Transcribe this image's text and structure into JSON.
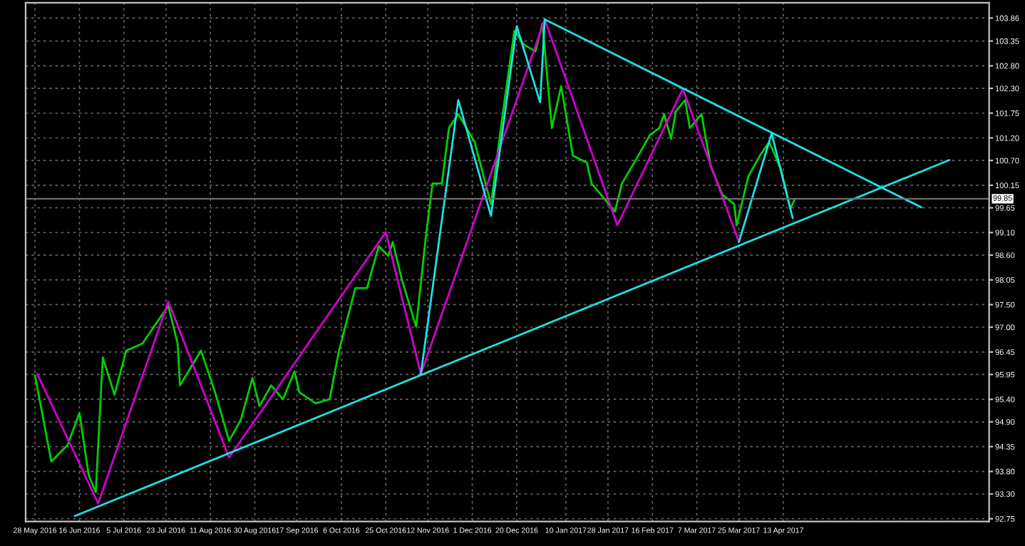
{
  "chart_data": {
    "type": "line",
    "xlim": [
      "2016-05-24",
      "2017-07-10"
    ],
    "ylim": [
      92.69,
      104.2
    ],
    "xticks": [
      {
        "value": "2016-05-28",
        "label": "28 May 2016"
      },
      {
        "value": "2016-06-16",
        "label": "16 Jun 2016"
      },
      {
        "value": "2016-07-05",
        "label": "5 Jul 2016"
      },
      {
        "value": "2016-07-23",
        "label": "23 Jul 2016"
      },
      {
        "value": "2016-08-11",
        "label": "11 Aug 2016"
      },
      {
        "value": "2016-08-30",
        "label": "30 Aug 2016"
      },
      {
        "value": "2016-09-17",
        "label": "17 Sep 2016"
      },
      {
        "value": "2016-10-06",
        "label": "6 Oct 2016"
      },
      {
        "value": "2016-10-25",
        "label": "25 Oct 2016"
      },
      {
        "value": "2016-11-12",
        "label": "12 Nov 2016"
      },
      {
        "value": "2016-12-01",
        "label": "1 Dec 2016"
      },
      {
        "value": "2016-12-20",
        "label": "20 Dec 2016"
      },
      {
        "value": "2017-01-10",
        "label": "10 Jan 2017"
      },
      {
        "value": "2017-01-28",
        "label": "28 Jan 2017"
      },
      {
        "value": "2017-02-16",
        "label": "16 Feb 2017"
      },
      {
        "value": "2017-03-07",
        "label": "7 Mar 2017"
      },
      {
        "value": "2017-03-25",
        "label": "25 Mar 2017"
      },
      {
        "value": "2017-04-13",
        "label": "13 Apr 2017"
      }
    ],
    "yticks": [
      103.86,
      103.35,
      {
        "value": 102.8,
        "label": "102.80"
      },
      {
        "value": 102.3,
        "label": "102.30"
      },
      101.75,
      {
        "value": 101.2,
        "label": "101.20"
      },
      {
        "value": 100.7,
        "label": "100.70"
      },
      100.15,
      99.65,
      {
        "value": 99.1,
        "label": "99.10"
      },
      {
        "value": 98.6,
        "label": "98.60"
      },
      98.05,
      {
        "value": 97.5,
        "label": "97.50"
      },
      {
        "value": 97.0,
        "label": "97.00"
      },
      96.45,
      95.95,
      {
        "value": 95.4,
        "label": "95.40"
      },
      {
        "value": 94.9,
        "label": "94.90"
      },
      94.35,
      {
        "value": 93.8,
        "label": "93.80"
      },
      {
        "value": 93.3,
        "label": "93.30"
      },
      92.75
    ],
    "grid": true,
    "line_style": "solid",
    "ref_lines": [
      {
        "axis": "y",
        "value": 99.85,
        "label": "99.85",
        "color": "#6e6e6e"
      }
    ],
    "series": [
      {
        "color": "#00d000",
        "x": [
          "2016-05-28",
          "2016-06-04",
          "2016-06-11",
          "2016-06-16",
          "2016-06-20",
          "2016-06-23",
          "2016-06-26",
          "2016-07-01",
          "2016-07-06",
          "2016-07-13",
          "2016-07-19",
          "2016-07-24",
          "2016-07-28",
          "2016-07-29",
          "2016-08-07",
          "2016-08-13",
          "2016-08-19",
          "2016-08-24",
          "2016-08-29",
          "2016-09-01",
          "2016-09-06",
          "2016-09-11",
          "2016-09-16",
          "2016-09-18",
          "2016-09-25",
          "2016-10-01",
          "2016-10-05",
          "2016-10-12",
          "2016-10-17",
          "2016-10-22",
          "2016-10-26",
          "2016-10-28",
          "2016-11-01",
          "2016-11-07",
          "2016-11-11",
          "2016-11-14",
          "2016-11-18",
          "2016-11-21",
          "2016-11-25",
          "2016-12-02",
          "2016-12-09",
          "2016-12-14",
          "2016-12-19",
          "2016-12-23",
          "2016-12-28",
          "2016-12-31",
          "2017-01-04",
          "2017-01-08",
          "2017-01-13",
          "2017-01-19",
          "2017-01-21",
          "2017-01-31",
          "2017-02-03",
          "2017-02-10",
          "2017-02-15",
          "2017-02-19",
          "2017-02-21",
          "2017-02-24",
          "2017-02-26",
          "2017-03-02",
          "2017-03-04",
          "2017-03-09",
          "2017-03-13",
          "2017-03-18",
          "2017-03-23",
          "2017-03-24",
          "2017-03-29",
          "2017-04-03",
          "2017-04-07",
          "2017-04-12",
          "2017-04-16",
          "2017-04-18"
        ],
        "values": [
          95.93,
          94.02,
          94.39,
          95.1,
          93.71,
          93.34,
          96.33,
          95.5,
          96.48,
          96.64,
          97.1,
          97.47,
          96.64,
          95.71,
          96.48,
          95.56,
          94.48,
          94.94,
          95.87,
          95.25,
          95.71,
          95.4,
          96.02,
          95.56,
          95.31,
          95.4,
          96.48,
          97.87,
          97.87,
          98.8,
          98.58,
          98.89,
          98.03,
          97.01,
          98.95,
          100.19,
          100.19,
          101.42,
          101.73,
          101.11,
          99.73,
          101.73,
          103.58,
          103.27,
          103.12,
          103.74,
          101.42,
          102.35,
          100.81,
          100.65,
          100.19,
          99.57,
          100.19,
          100.81,
          101.27,
          101.42,
          101.73,
          101.18,
          101.79,
          102.04,
          101.42,
          101.73,
          100.56,
          99.94,
          99.73,
          99.26,
          100.34,
          100.81,
          101.11,
          100.5,
          99.63,
          99.85
        ]
      },
      {
        "color": "#d000d0",
        "x": [
          "2016-05-29",
          "2016-06-24",
          "2016-07-24",
          "2016-08-19",
          "2016-10-25",
          "2016-11-09",
          "2017-01-01",
          "2017-02-01",
          "2017-03-01",
          "2017-03-25"
        ],
        "values": [
          95.96,
          93.09,
          97.57,
          94.11,
          99.11,
          95.96,
          103.83,
          99.26,
          102.29,
          98.89
        ]
      },
      {
        "color": "#20e0e0",
        "x": [
          "2016-11-09",
          "2016-11-25",
          "2016-12-09",
          "2016-12-20",
          "2016-12-30",
          "2017-01-01"
        ],
        "values": [
          95.96,
          102.04,
          99.47,
          103.68,
          101.99,
          103.83
        ]
      },
      {
        "color": "#20e0e0",
        "x": [
          "2017-03-25",
          "2017-04-08",
          "2017-04-17"
        ],
        "values": [
          98.89,
          101.3,
          99.42
        ]
      },
      {
        "color": "#20e0e0",
        "x": [
          "2016-06-14",
          "2017-06-23"
        ],
        "values": [
          92.81,
          100.71
        ]
      },
      {
        "color": "#20e0e0",
        "x": [
          "2017-01-01",
          "2017-06-11"
        ],
        "values": [
          103.83,
          99.66
        ]
      }
    ]
  }
}
